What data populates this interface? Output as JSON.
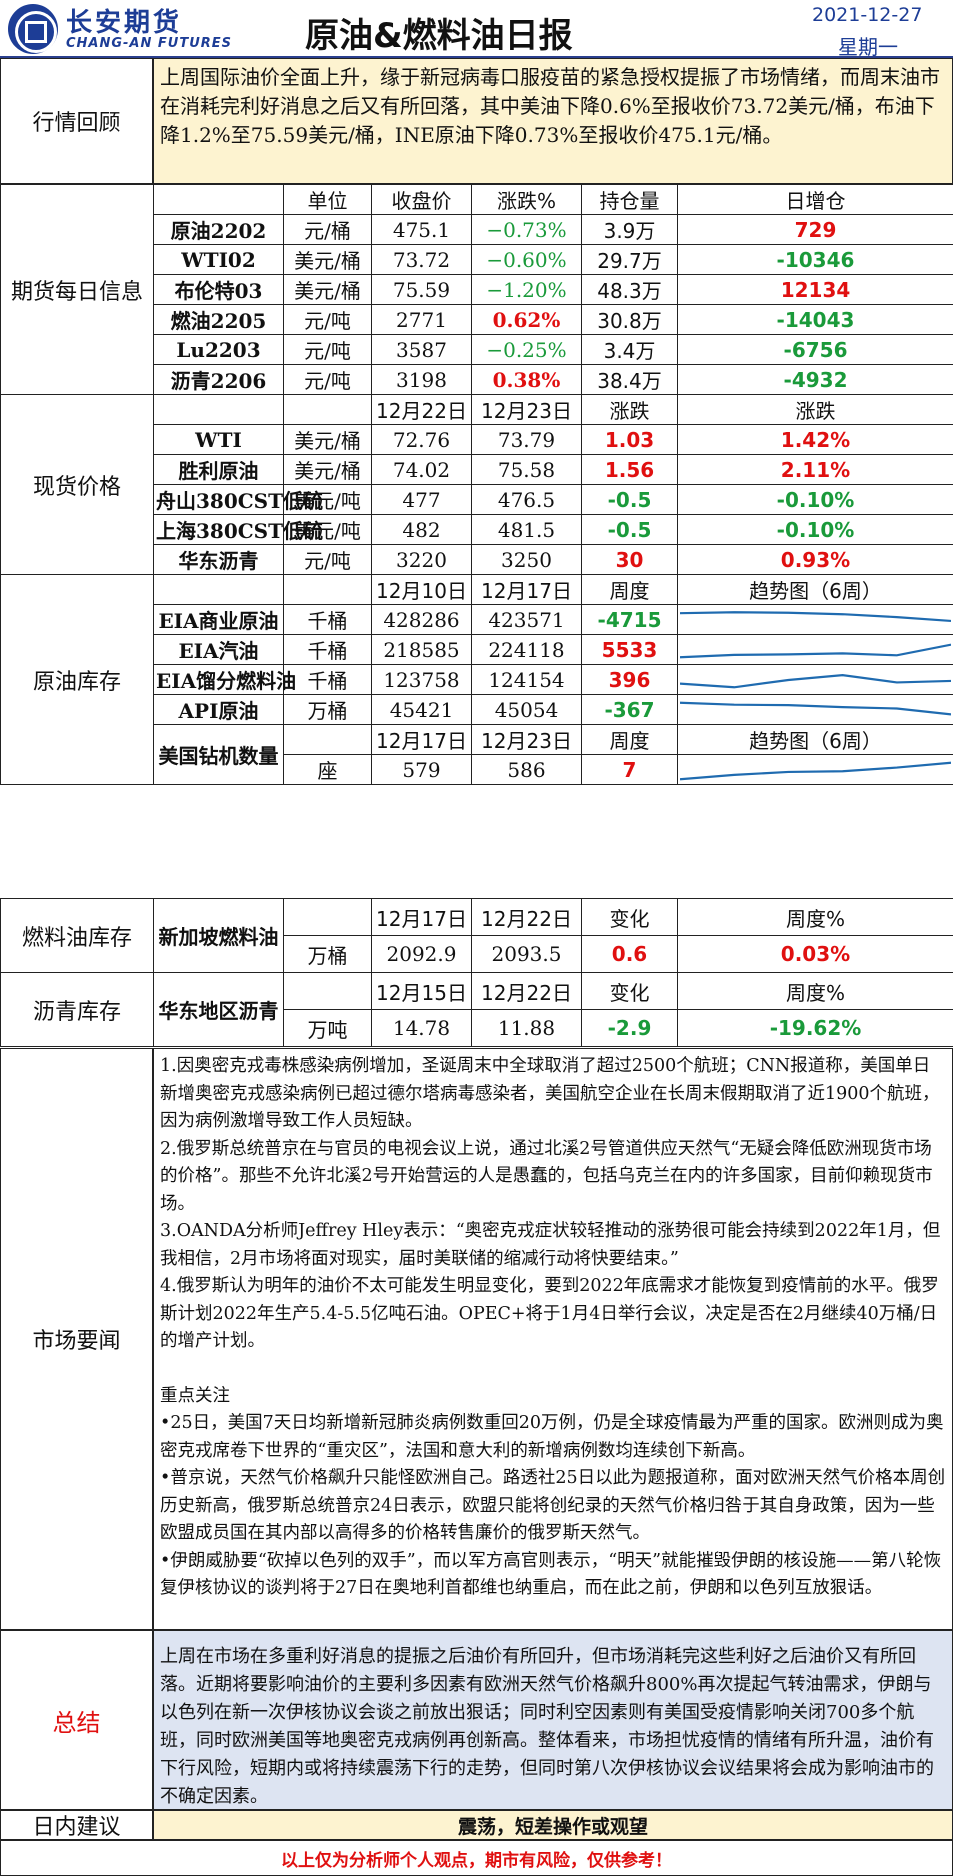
{
  "header": {
    "brand_cn": "长安期货",
    "brand_en": "CHANG-AN FUTURES",
    "title": "原油&燃料油日报",
    "date": "2021-12-27",
    "weekday": "星期一"
  },
  "review": {
    "label": "行情回顾",
    "text": "上周国际油价全面上升，缘于新冠病毒口服疫苗的紧急授权提振了市场情绪，而周末油市在消耗完利好消息之后又有所回落，其中美油下降0.6%至报收价73.72美元/桶，布油下降1.2%至75.59美元/桶，INE原油下降0.73%至报收价475.1元/桶。"
  },
  "futures": {
    "label": "期货每日信息",
    "headers": [
      "单位",
      "收盘价",
      "涨跌%",
      "持仓量",
      "日增仓"
    ],
    "rows": [
      {
        "name": "原油2202",
        "unit": "元/桶",
        "close": "475.1",
        "chg": "−0.73%",
        "oi": "3.9万",
        "doi": "729"
      },
      {
        "name": "WTI02",
        "unit": "美元/桶",
        "close": "73.72",
        "chg": "−0.60%",
        "oi": "29.7万",
        "doi": "-10346"
      },
      {
        "name": "布伦特03",
        "unit": "美元/桶",
        "close": "75.59",
        "chg": "−1.20%",
        "oi": "48.3万",
        "doi": "12134"
      },
      {
        "name": "燃油2205",
        "unit": "元/吨",
        "close": "2771",
        "chg": "0.62%",
        "oi": "30.8万",
        "doi": "-14043"
      },
      {
        "name": "Lu2203",
        "unit": "元/吨",
        "close": "3587",
        "chg": "−0.25%",
        "oi": "3.4万",
        "doi": "-6756"
      },
      {
        "name": "沥青2206",
        "unit": "元/吨",
        "close": "3198",
        "chg": "0.38%",
        "oi": "38.4万",
        "doi": "-4932"
      }
    ]
  },
  "spot": {
    "label": "现货价格",
    "headers": [
      "12月22日",
      "12月23日",
      "涨跌",
      "涨跌"
    ],
    "rows": [
      {
        "name": "WTI",
        "unit": "美元/桶",
        "d1": "72.76",
        "d2": "73.79",
        "chg": "1.03",
        "pct": "1.42%"
      },
      {
        "name": "胜利原油",
        "unit": "美元/桶",
        "d1": "74.02",
        "d2": "75.58",
        "chg": "1.56",
        "pct": "2.11%"
      },
      {
        "name": "舟山380CST低硫",
        "unit": "美元/吨",
        "d1": "477",
        "d2": "476.5",
        "chg": "-0.5",
        "pct": "-0.10%"
      },
      {
        "name": "上海380CST低硫",
        "unit": "美元/吨",
        "d1": "482",
        "d2": "481.5",
        "chg": "-0.5",
        "pct": "-0.10%"
      },
      {
        "name": "华东沥青",
        "unit": "元/吨",
        "d1": "3220",
        "d2": "3250",
        "chg": "30",
        "pct": "0.93%"
      }
    ]
  },
  "crude_inv": {
    "label": "原油库存",
    "headers": [
      "12月10日",
      "12月17日",
      "周度",
      "趋势图（6周）"
    ],
    "rows": [
      {
        "name": "EIA商业原油",
        "unit": "千桶",
        "d1": "428286",
        "d2": "423571",
        "chg": "-4715",
        "trend": [
          0.78,
          0.82,
          0.8,
          0.74,
          0.62,
          0.46
        ]
      },
      {
        "name": "EIA汽油",
        "unit": "千桶",
        "d1": "218585",
        "d2": "224118",
        "chg": "5533",
        "trend": [
          0.2,
          0.3,
          0.32,
          0.36,
          0.28,
          0.72
        ]
      },
      {
        "name": "EIA馏分燃料油",
        "unit": "千桶",
        "d1": "123758",
        "d2": "124154",
        "chg": "396",
        "trend": [
          0.35,
          0.2,
          0.5,
          0.7,
          0.4,
          0.46
        ]
      },
      {
        "name": "API原油",
        "unit": "万桶",
        "d1": "45421",
        "d2": "45054",
        "chg": "-367",
        "trend": [
          0.8,
          0.72,
          0.7,
          0.62,
          0.56,
          0.32
        ]
      }
    ],
    "rig": {
      "name": "美国钻机数量",
      "headers": [
        "12月17日",
        "12月23日",
        "周度",
        "趋势图（6周）"
      ],
      "unit": "座",
      "d1": "579",
      "d2": "586",
      "chg": "7",
      "trend": [
        0.12,
        0.3,
        0.42,
        0.45,
        0.6,
        0.8
      ]
    }
  },
  "fuel_inv": {
    "label": "燃料油库存",
    "name": "新加坡燃料油",
    "headers": [
      "12月17日",
      "12月22日",
      "变化",
      "周度%"
    ],
    "unit": "万桶",
    "d1": "2092.9",
    "d2": "2093.5",
    "chg": "0.6",
    "pct": "0.03%"
  },
  "asphalt_inv": {
    "label": "沥青库存",
    "name": "华东地区沥青",
    "headers": [
      "12月15日",
      "12月22日",
      "变化",
      "周度%"
    ],
    "unit": "万吨",
    "d1": "14.78",
    "d2": "11.88",
    "chg": "-2.9",
    "pct": "-19.62%"
  },
  "news": {
    "label": "市场要闻",
    "items": [
      "1.因奥密克戎毒株感染病例增加，圣诞周末中全球取消了超过2500个航班；CNN报道称，美国单日新增奥密克戎感染病例已超过德尔塔病毒感染者，美国航空企业在长周末假期取消了近1900个航班，因为病例激增导致工作人员短缺。",
      "2.俄罗斯总统普京在与官员的电视会议上说，通过北溪2号管道供应天然气“无疑会降低欧洲现货市场的价格”。那些不允许北溪2号开始营运的人是愚蠢的，包括乌克兰在内的许多国家，目前仰赖现货市场。",
      "3.OANDA分析师Jeffrey Hley表示：“奥密克戎症状较轻推动的涨势很可能会持续到2022年1月，但我相信，2月市场将面对现实，届时美联储的缩减行动将快要结束。”",
      "4.俄罗斯认为明年的油价不太可能发生明显变化，要到2022年底需求才能恢复到疫情前的水平。俄罗斯计划2022年生产5.4-5.5亿吨石油。OPEC+将于1月4日举行会议，决定是否在2月继续40万桶/日的增产计划。"
    ],
    "focus_title": "重点关注",
    "focus": [
      "•25日，美国7天日均新增新冠肺炎病例数重回20万例，仍是全球疫情最为严重的国家。欧洲则成为奥密克戎席卷下世界的“重灾区”，法国和意大利的新增病例数均连续创下新高。",
      "•普京说，天然气价格飙升只能怪欧洲自己。路透社25日以此为题报道称，面对欧洲天然气价格本周创历史新高，俄罗斯总统普京24日表示，欧盟只能将创纪录的天然气价格归咎于其自身政策，因为一些欧盟成员国在其内部以高得多的价格转售廉价的俄罗斯天然气。",
      "•伊朗威胁要“砍掉以色列的双手”，而以军方高官则表示，“明天”就能摧毁伊朗的核设施——第八轮恢复伊核协议的谈判将于27日在奥地利首都维也纳重启，而在此之前，伊朗和以色列互放狠话。"
    ]
  },
  "summary": {
    "label": "总结",
    "text": "上周在市场在多重利好消息的提振之后油价有所回升，但市场消耗完这些利好之后油价又有所回落。近期将要影响油价的主要利多因素有欧洲天然气价格飙升800%再次提起气转油需求，伊朗与以色列在新一次伊核协议会谈之前放出狠话；同时利空因素则有美国受疫情影响关闭700多个航班，同时欧洲美国等地奥密克戎病例再创新高。整体看来，市场担忧疫情的情绪有所升温，油价有下行风险，短期内或将持续震荡下行的走势，但同时第八次伊核协议会议结果将会成为影响油市的不确定因素。"
  },
  "advice": {
    "label": "日内建议",
    "text": "震荡，短差操作或观望"
  },
  "disclaimer": "以上仅为分析师个人观点，期市有风险，仅供参考！",
  "colors": {
    "brand": "#1d3d96",
    "up": "#e01010",
    "down": "#1a9a3a",
    "review_bg": "#fdf3d0",
    "summary_bg": "#dde4f2",
    "spark": "#1f6bb0"
  }
}
